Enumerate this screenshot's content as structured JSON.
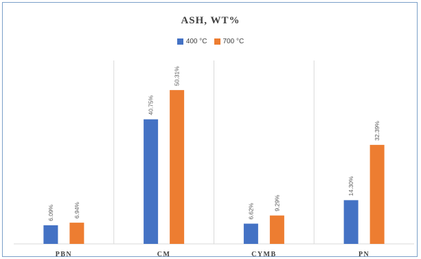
{
  "chart_data": {
    "type": "bar",
    "title": "ASH, WT%",
    "categories": [
      "PBN",
      "CM",
      "CYMB",
      "PN"
    ],
    "series": [
      {
        "name": "400 °C",
        "color": "#4472c4",
        "values": [
          6.09,
          40.75,
          6.62,
          14.3
        ],
        "labels": [
          "6.09%",
          "40.75%",
          "6.62%",
          "14.30%"
        ]
      },
      {
        "name": "700 °C",
        "color": "#ed7d31",
        "values": [
          6.94,
          50.31,
          9.29,
          32.39
        ],
        "labels": [
          "6.94%",
          "50.31%",
          "9.29%",
          "32.39%"
        ]
      }
    ],
    "ylim": [
      0,
      60
    ],
    "grid": "vertical separators",
    "legend_position": "top-center"
  }
}
